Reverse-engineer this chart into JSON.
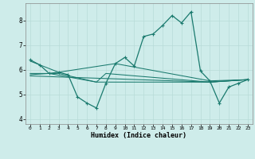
{
  "title": "",
  "xlabel": "Humidex (Indice chaleur)",
  "ylabel": "",
  "bg_color": "#ceecea",
  "line_color": "#1a7a6e",
  "grid_color": "#b8dbd8",
  "ylim": [
    3.8,
    8.7
  ],
  "xlim": [
    -0.5,
    23.5
  ],
  "yticks": [
    4,
    5,
    6,
    7,
    8
  ],
  "xticks": [
    0,
    1,
    2,
    3,
    4,
    5,
    6,
    7,
    8,
    9,
    10,
    11,
    12,
    13,
    14,
    15,
    16,
    17,
    18,
    19,
    20,
    21,
    22,
    23
  ],
  "line_main": {
    "x": [
      0,
      1,
      2,
      3,
      4,
      5,
      6,
      7,
      8,
      9,
      10,
      11,
      12,
      13,
      14,
      15,
      16,
      17,
      18,
      19,
      20,
      21,
      22,
      23
    ],
    "y": [
      6.4,
      6.2,
      5.85,
      5.9,
      5.8,
      4.9,
      4.65,
      4.45,
      5.45,
      6.25,
      6.5,
      6.15,
      7.35,
      7.45,
      7.8,
      8.2,
      7.9,
      8.35,
      5.95,
      5.55,
      4.65,
      5.3,
      5.45,
      5.6
    ]
  },
  "line2": {
    "x": [
      0,
      1,
      3,
      9,
      19,
      23
    ],
    "y": [
      6.35,
      6.2,
      5.9,
      6.25,
      5.55,
      5.6
    ]
  },
  "line3": {
    "x": [
      0,
      2,
      3,
      7,
      8,
      19,
      23
    ],
    "y": [
      5.85,
      5.85,
      5.85,
      5.5,
      5.85,
      5.5,
      5.6
    ]
  },
  "line4": {
    "x": [
      0,
      2,
      7,
      19,
      23
    ],
    "y": [
      5.8,
      5.85,
      5.5,
      5.5,
      5.6
    ]
  },
  "line5": {
    "x": [
      0,
      19,
      23
    ],
    "y": [
      5.75,
      5.5,
      5.6
    ]
  }
}
